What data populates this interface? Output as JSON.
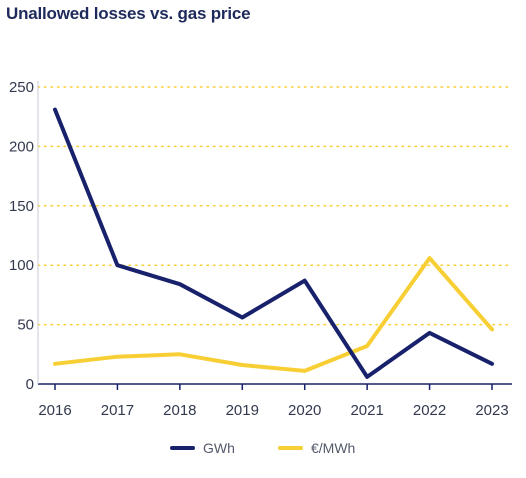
{
  "colors": {
    "gwh": "#18216b",
    "eur": "#f7cf35",
    "grid": "#f7cf35",
    "axis": "#18216b"
  },
  "chart_data": {
    "type": "line",
    "title": "Unallowed losses vs. gas price",
    "xlabel": "",
    "ylabel": "",
    "x": [
      "2016",
      "2017",
      "2018",
      "2019",
      "2020",
      "2021",
      "2022",
      "2023"
    ],
    "yticks": [
      "0",
      "50",
      "100",
      "150",
      "200",
      "250"
    ],
    "ylim": [
      0,
      250
    ],
    "grid": true,
    "legend_position": "bottom-center",
    "series": [
      {
        "name": "GWh",
        "values": [
          231,
          100,
          84,
          56,
          87,
          6,
          43,
          17
        ]
      },
      {
        "name": "€/MWh",
        "values": [
          17,
          23,
          25,
          16,
          11,
          32,
          106,
          46
        ]
      }
    ]
  }
}
